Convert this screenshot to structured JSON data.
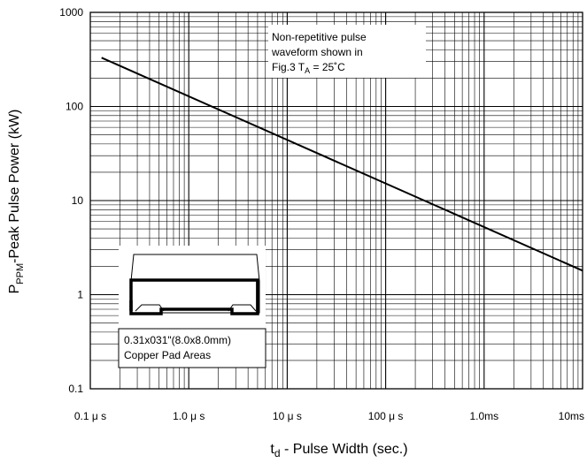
{
  "chart_data": {
    "type": "line",
    "xscale": "log",
    "yscale": "log",
    "xlim": [
      1e-07,
      0.01
    ],
    "ylim": [
      0.1,
      1000
    ],
    "grid": true,
    "xlabel": {
      "main": "t",
      "sub": "d",
      "rest": " - Pulse Width (sec.)"
    },
    "ylabel": {
      "main": "P",
      "sub": "PPM",
      "rest": "-Peak Pulse Power (kW)"
    },
    "x_ticks": [
      {
        "value": 1e-07,
        "label": "0.1 μ s"
      },
      {
        "value": 1e-06,
        "label": "1.0 μ s"
      },
      {
        "value": 1e-05,
        "label": "10 μ s"
      },
      {
        "value": 0.0001,
        "label": "100 μ s"
      },
      {
        "value": 0.001,
        "label": "1.0ms"
      },
      {
        "value": 0.01,
        "label": "10ms"
      }
    ],
    "y_ticks": [
      {
        "value": 1000,
        "label": "1000"
      },
      {
        "value": 100,
        "label": "100"
      },
      {
        "value": 10,
        "label": "10"
      },
      {
        "value": 1,
        "label": "1"
      },
      {
        "value": 0.1,
        "label": "0.1"
      }
    ],
    "series": [
      {
        "x": [
          1.3e-07,
          0.01
        ],
        "y": [
          330,
          1.8
        ]
      }
    ],
    "annotation": {
      "line1": "Non-repetitive pulse",
      "line2": "waveform shown in",
      "line3_prefix": "Fig.3 T",
      "line3_sub": "A",
      "line3_suffix": " = 25˚C"
    },
    "inset_caption": [
      "0.31x031\"(8.0x8.0mm)",
      "Copper Pad Areas"
    ]
  }
}
